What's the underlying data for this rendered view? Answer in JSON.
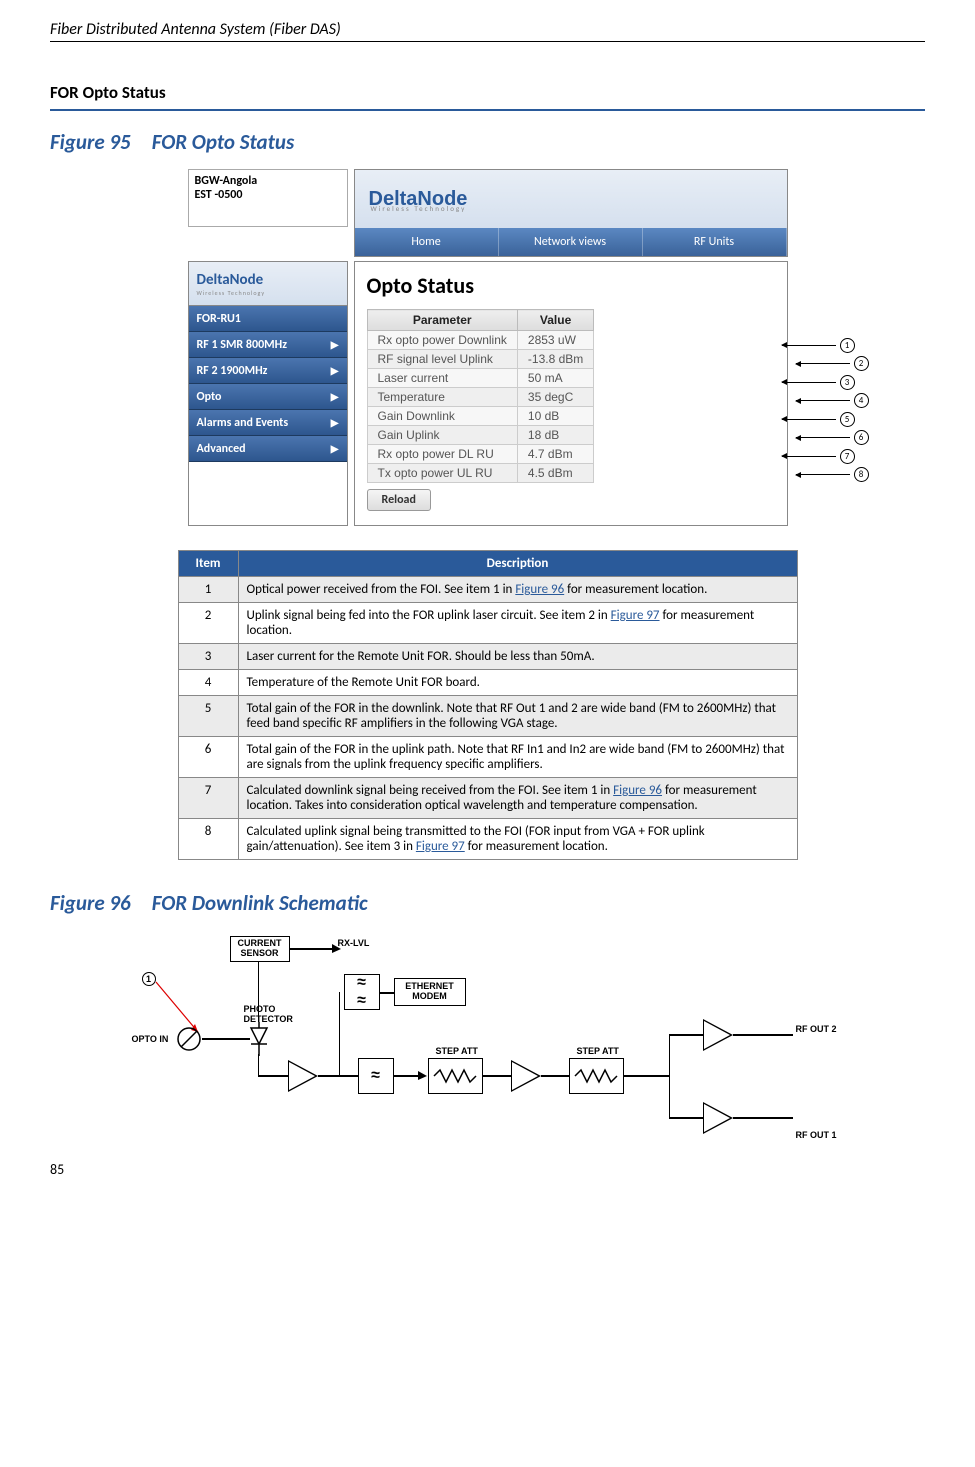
{
  "header": {
    "doc_title": "Fiber Distributed Antenna System (Fiber DAS)"
  },
  "section": {
    "title": "FOR Opto Status"
  },
  "fig95": {
    "caption": "Figure 95 FOR Opto Status"
  },
  "topbox": {
    "line1": "BGW-Angola",
    "line2": "EST -0500"
  },
  "brand": {
    "name": "DeltaNode",
    "sub": "Wireless   Technology"
  },
  "nav": {
    "home": "Home",
    "network": "Network views",
    "rf": "RF Units"
  },
  "sidebar": {
    "items": [
      {
        "label": "FOR-RU1",
        "arrow": ""
      },
      {
        "label": "RF 1 SMR 800MHz",
        "arrow": "▶"
      },
      {
        "label": "RF 2 1900MHz",
        "arrow": "▶"
      },
      {
        "label": "Opto",
        "arrow": "▶"
      },
      {
        "label": "Alarms and Events",
        "arrow": "▶"
      },
      {
        "label": "Advanced",
        "arrow": "▶"
      }
    ]
  },
  "panel": {
    "title": "Opto Status",
    "param_h": "Parameter",
    "val_h": "Value",
    "reload": "Reload"
  },
  "opto_rows": [
    {
      "p": "Rx opto power Downlink",
      "v": "2853 uW"
    },
    {
      "p": "RF signal level Uplink",
      "v": "-13.8 dBm"
    },
    {
      "p": "Laser current",
      "v": "50 mA"
    },
    {
      "p": "Temperature",
      "v": "35 degC"
    },
    {
      "p": "Gain Downlink",
      "v": "10 dB"
    },
    {
      "p": "Gain Uplink",
      "v": "18 dB"
    },
    {
      "p": "Rx opto power DL RU",
      "v": "4.7 dBm"
    },
    {
      "p": "Tx opto power UL RU",
      "v": "4.5 dBm"
    }
  ],
  "callouts": [
    "1",
    "2",
    "3",
    "4",
    "5",
    "6",
    "7",
    "8"
  ],
  "desc_table": {
    "h_item": "Item",
    "h_desc": "Description",
    "rows": [
      {
        "n": "1",
        "pre": "Optical power received from the FOI. See item 1 in ",
        "link": "Figure 96",
        "post": " for measurement location."
      },
      {
        "n": "2",
        "pre": "Uplink signal being fed into the FOR uplink laser circuit. See item 2 in ",
        "link": "Figure 97",
        "post": " for measurement location."
      },
      {
        "n": "3",
        "pre": "Laser current for the Remote Unit FOR. Should be less than 50mA.",
        "link": "",
        "post": ""
      },
      {
        "n": "4",
        "pre": "Temperature of the Remote Unit FOR board.",
        "link": "",
        "post": ""
      },
      {
        "n": "5",
        "pre": "Total gain of the FOR in the downlink. Note that RF Out 1 and 2 are wide band (FM to 2600MHz) that feed band specific RF amplifiers in the following VGA stage.",
        "link": "",
        "post": ""
      },
      {
        "n": "6",
        "pre": "Total gain of the FOR in the uplink path. Note that RF In1 and In2 are wide band (FM to 2600MHz) that are signals from the uplink frequency specific amplifiers.",
        "link": "",
        "post": ""
      },
      {
        "n": "7",
        "pre": "Calculated downlink signal being received from the FOI.   See item 1 in ",
        "link": "Figure 96",
        "post": " for measurement location. Takes into consideration optical wavelength and temperature compensation."
      },
      {
        "n": "8",
        "pre": "Calculated uplink signal being transmitted to the FOI (FOR input from VGA + FOR uplink gain/attenuation). See item 3 in ",
        "link": "Figure 97",
        "post": " for measurement location."
      }
    ]
  },
  "fig96": {
    "caption": "Figure 96 FOR Downlink Schematic"
  },
  "sch": {
    "current_sensor": "CURRENT\nSENSOR",
    "rxlvl": "RX-LVL",
    "eth": "ETHERNET\nMODEM",
    "photo": "PHOTO\nDETECTOR",
    "opto_in": "OPTO IN",
    "step_att": "STEP ATT",
    "rf_out1": "RF OUT 1",
    "rf_out2": "RF OUT 2",
    "marker": "1"
  },
  "page": {
    "num": "85"
  }
}
